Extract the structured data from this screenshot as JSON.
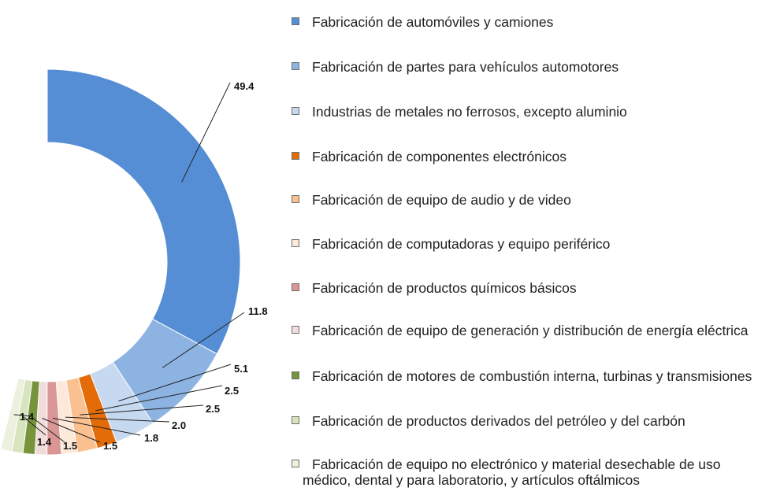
{
  "chart_data": {
    "type": "pie",
    "variant": "half-donut",
    "legend_position": "right",
    "slices": [
      {
        "label": "Fabricación de automóviles y camiones",
        "value": 49.4,
        "value_label": "49.4",
        "color": "#558ed5"
      },
      {
        "label": "Fabricación de partes para vehículos automotores",
        "value": 11.8,
        "value_label": "11.8",
        "color": "#8db3e2"
      },
      {
        "label": "Industrias de metales no ferrosos, excepto aluminio",
        "value": 5.1,
        "value_label": "5.1",
        "color": "#c6d9f1"
      },
      {
        "label": "Fabricación de componentes electrónicos",
        "value": 2.5,
        "value_label": "2.5",
        "color": "#e36c09"
      },
      {
        "label": "Fabricación de equipo de audio y de video",
        "value": 2.5,
        "value_label": "2.5",
        "color": "#fac090"
      },
      {
        "label": "Fabricación de computadoras y equipo periférico",
        "value": 2.0,
        "value_label": "2.0",
        "color": "#fde9d9"
      },
      {
        "label": "Fabricación de productos químicos básicos",
        "value": 1.8,
        "value_label": "1.8",
        "color": "#d99694"
      },
      {
        "label": "Fabricación de equipo de generación y distribución de energía eléctrica",
        "value": 1.5,
        "value_label": "1.5",
        "color": "#f2dcdb"
      },
      {
        "label": "Fabricación de motores de combustión interna, turbinas y transmisiones",
        "value": 1.5,
        "value_label": "1.5",
        "color": "#77933c"
      },
      {
        "label": "Fabricación de productos derivados del petróleo y del carbón",
        "value": 1.4,
        "value_label": "1.4",
        "color": "#d7e4bd"
      },
      {
        "label": "Fabricación de equipo no electrónico y material desechable de uso médico, dental y para laboratorio, y artículos oftálmicos",
        "value": 1.4,
        "value_label": "1.4",
        "color": "#ebf1de"
      }
    ]
  }
}
